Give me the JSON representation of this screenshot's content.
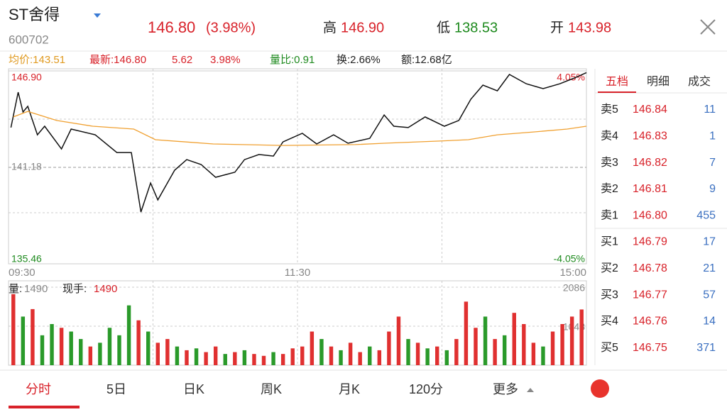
{
  "header": {
    "name": "ST舍得",
    "code": "600702",
    "price": "146.80",
    "change_pct": "(3.98%)",
    "high_label": "高",
    "high": "146.90",
    "low_label": "低",
    "low": "138.53",
    "open_label": "开",
    "open": "143.98"
  },
  "stats": {
    "avg": "均价:143.51",
    "last": "最新:146.80",
    "change": "5.62",
    "pct": "3.98%",
    "vol_ratio": "量比:0.91",
    "turnover": "换:2.66%",
    "amount": "额:12.68亿"
  },
  "chart_data": [
    {
      "type": "line",
      "xlim": [
        0,
        240
      ],
      "xticks": [
        {
          "value": 0,
          "label": "09:30"
        },
        {
          "value": 120,
          "label": "11:30"
        },
        {
          "value": 240,
          "label": "15:00"
        }
      ],
      "ylim": [
        135.46,
        146.9
      ],
      "yticks": [
        {
          "value": 146.9,
          "label": "146.90"
        },
        141.18,
        135.46
      ],
      "y2lim": [
        -4.05,
        4.05
      ],
      "y2ticks": [
        {
          "value": 4.05,
          "label": "4.05%"
        },
        {
          "value": -4.05,
          "label": "-4.05%"
        }
      ],
      "series": [
        {
          "color": "#111111",
          "x": [
            1,
            4,
            6,
            8,
            12,
            15,
            22,
            26,
            36,
            45,
            51,
            55,
            59,
            62,
            69,
            74,
            80,
            86,
            94,
            98,
            104,
            110,
            114,
            122,
            128,
            135,
            141,
            150,
            156,
            160,
            166,
            173,
            181,
            187,
            192,
            197,
            203,
            208,
            215,
            222,
            229,
            235,
            240
          ],
          "values": [
            143.54,
            145.64,
            144.46,
            144.8,
            143.11,
            143.62,
            142.27,
            143.45,
            143.11,
            142.06,
            142.06,
            138.53,
            140.25,
            139.25,
            141.01,
            141.64,
            141.35,
            140.59,
            140.89,
            141.64,
            141.94,
            141.85,
            142.69,
            143.2,
            142.57,
            143.11,
            142.61,
            142.9,
            144.29,
            143.62,
            143.54,
            144.17,
            143.62,
            143.96,
            145.22,
            146.06,
            145.72,
            146.69,
            146.14,
            145.85,
            146.14,
            146.48,
            146.8
          ]
        },
        {
          "color": "#f0a030",
          "x": [
            2,
            8,
            20,
            35,
            52,
            61,
            85,
            114,
            144,
            156,
            179,
            191,
            203,
            218,
            232,
            240
          ],
          "values": [
            144.17,
            144.5,
            143.96,
            143.62,
            143.45,
            142.82,
            142.57,
            142.48,
            142.53,
            142.61,
            142.74,
            142.82,
            143.11,
            143.28,
            143.45,
            143.62
          ]
        }
      ]
    },
    {
      "type": "bar",
      "ylim": [
        0,
        2086
      ],
      "yticks": [
        1043,
        2086
      ],
      "volume_label": "量:",
      "volume": "1490",
      "hand_label": "现手:",
      "hand": "1490",
      "up_color": "#e03030",
      "down_color": "#2a9a2a",
      "values": [
        1900,
        1300,
        1500,
        800,
        1100,
        1000,
        900,
        700,
        500,
        600,
        1000,
        800,
        1600,
        1200,
        900,
        600,
        700,
        500,
        400,
        450,
        350,
        500,
        300,
        350,
        400,
        300,
        250,
        350,
        300,
        450,
        500,
        900,
        700,
        500,
        400,
        600,
        350,
        500,
        400,
        900,
        1300,
        700,
        600,
        450,
        500,
        400,
        700,
        1700,
        1000,
        1300,
        700,
        800,
        1400,
        1100,
        600,
        500,
        900,
        1100,
        1300,
        1490
      ],
      "up": [
        1,
        0,
        1,
        0,
        0,
        1,
        0,
        0,
        1,
        0,
        0,
        0,
        0,
        1,
        0,
        1,
        1,
        0,
        1,
        0,
        1,
        1,
        0,
        1,
        0,
        1,
        1,
        0,
        1,
        1,
        1,
        1,
        0,
        1,
        0,
        1,
        1,
        0,
        1,
        1,
        1,
        0,
        1,
        0,
        1,
        0,
        1,
        1,
        1,
        0,
        1,
        0,
        1,
        1,
        1,
        0,
        1,
        1,
        1,
        1
      ]
    }
  ],
  "order_book": {
    "tabs": [
      "五档",
      "明细",
      "成交"
    ],
    "asks": [
      {
        "label": "卖5",
        "price": "146.84",
        "volume": "11"
      },
      {
        "label": "卖4",
        "price": "146.83",
        "volume": "1"
      },
      {
        "label": "卖3",
        "price": "146.82",
        "volume": "7"
      },
      {
        "label": "卖2",
        "price": "146.81",
        "volume": "9"
      },
      {
        "label": "卖1",
        "price": "146.80",
        "volume": "455"
      }
    ],
    "bids": [
      {
        "label": "买1",
        "price": "146.79",
        "volume": "17"
      },
      {
        "label": "买2",
        "price": "146.78",
        "volume": "21"
      },
      {
        "label": "买3",
        "price": "146.77",
        "volume": "57"
      },
      {
        "label": "买4",
        "price": "146.76",
        "volume": "14"
      },
      {
        "label": "买5",
        "price": "146.75",
        "volume": "371"
      }
    ]
  },
  "tabs": [
    "分时",
    "5日",
    "日K",
    "周K",
    "月K",
    "120分",
    "更多"
  ]
}
